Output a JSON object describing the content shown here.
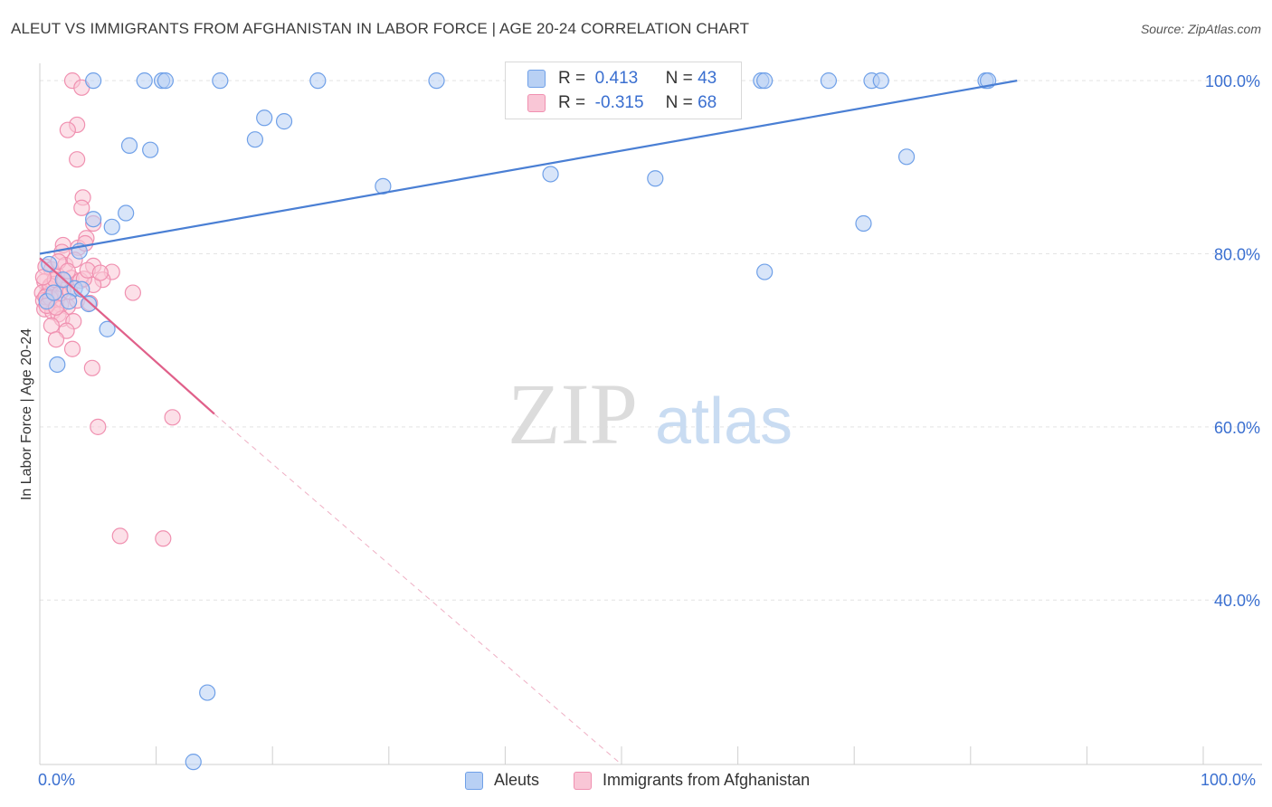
{
  "title": "ALEUT VS IMMIGRANTS FROM AFGHANISTAN IN LABOR FORCE | AGE 20-24 CORRELATION CHART",
  "source": "Source: ZipAtlas.com",
  "watermark": {
    "zip": "ZIP",
    "atlas": "atlas"
  },
  "legend": {
    "rows": [
      {
        "r_label": "R =",
        "r_value": "0.413",
        "n_label": "N =",
        "n_value": "43",
        "color": "#6fa0e8",
        "fill": "#b8d0f4"
      },
      {
        "r_label": "R =",
        "r_value": "-0.315",
        "n_label": "N =",
        "n_value": "68",
        "color": "#f090b0",
        "fill": "#f9c6d6"
      }
    ]
  },
  "bottom_legend": [
    {
      "label": "Aleuts",
      "fill": "#b8d0f4",
      "stroke": "#6fa0e8"
    },
    {
      "label": "Immigrants from Afghanistan",
      "fill": "#f9c6d6",
      "stroke": "#f090b0"
    }
  ],
  "x_axis": {
    "min_label": "0.0%",
    "max_label": "100.0%"
  },
  "chart_data": {
    "type": "scatter",
    "title": "ALEUT VS IMMIGRANTS FROM AFGHANISTAN IN LABOR FORCE | AGE 20-24 CORRELATION CHART",
    "xlabel": "",
    "ylabel": "In Labor Force | Age 20-24",
    "xlim": [
      0,
      100
    ],
    "ylim": [
      21,
      102
    ],
    "y_ticks": [
      {
        "value": 100,
        "label": "100.0%"
      },
      {
        "value": 80,
        "label": "80.0%"
      },
      {
        "value": 60,
        "label": "60.0%"
      },
      {
        "value": 40,
        "label": "40.0%"
      }
    ],
    "x_ticks": [
      0,
      10,
      20,
      30,
      40,
      50,
      60,
      70,
      80,
      90,
      100
    ],
    "series": [
      {
        "name": "Aleuts",
        "color": "#4a7fd4",
        "fill": "#b8d0f4",
        "stroke": "#6fa0e8",
        "trend": {
          "x": [
            0,
            84
          ],
          "y": [
            80.0,
            100.0
          ],
          "dashed_to": null
        },
        "points": [
          [
            4.6,
            100
          ],
          [
            9.0,
            100
          ],
          [
            10.5,
            100
          ],
          [
            10.8,
            100
          ],
          [
            15.5,
            100
          ],
          [
            23.9,
            100
          ],
          [
            34.1,
            100
          ],
          [
            47.3,
            100
          ],
          [
            54.8,
            100
          ],
          [
            62.0,
            100
          ],
          [
            62.3,
            100
          ],
          [
            67.8,
            100
          ],
          [
            71.5,
            100
          ],
          [
            72.3,
            100
          ],
          [
            81.3,
            100
          ],
          [
            81.5,
            100
          ],
          [
            19.3,
            95.7
          ],
          [
            21.0,
            95.3
          ],
          [
            18.5,
            93.2
          ],
          [
            7.7,
            92.5
          ],
          [
            9.5,
            92.0
          ],
          [
            74.5,
            91.2
          ],
          [
            43.9,
            89.2
          ],
          [
            52.9,
            88.7
          ],
          [
            29.5,
            87.8
          ],
          [
            7.4,
            84.7
          ],
          [
            6.2,
            83.1
          ],
          [
            4.6,
            84.0
          ],
          [
            70.8,
            83.5
          ],
          [
            3.4,
            80.3
          ],
          [
            0.8,
            78.8
          ],
          [
            62.3,
            77.9
          ],
          [
            3.0,
            76.0
          ],
          [
            4.2,
            74.2
          ],
          [
            2.5,
            74.5
          ],
          [
            5.8,
            71.3
          ],
          [
            1.5,
            67.2
          ],
          [
            0.6,
            74.5
          ],
          [
            14.4,
            29.3
          ],
          [
            13.2,
            21.3
          ],
          [
            2.0,
            77.0
          ],
          [
            1.2,
            75.5
          ],
          [
            3.6,
            75.9
          ]
        ]
      },
      {
        "name": "Immigrants from Afghanistan",
        "color": "#e0608a",
        "fill": "#f9c6d6",
        "stroke": "#f090b0",
        "trend": {
          "x": [
            0,
            15
          ],
          "y": [
            79.5,
            61.5
          ],
          "dashed_to": [
            50,
            21
          ]
        },
        "points": [
          [
            2.8,
            100
          ],
          [
            3.6,
            99.2
          ],
          [
            3.2,
            94.9
          ],
          [
            2.4,
            94.3
          ],
          [
            3.2,
            90.9
          ],
          [
            3.7,
            86.5
          ],
          [
            3.6,
            85.3
          ],
          [
            4.0,
            81.8
          ],
          [
            2.0,
            81.0
          ],
          [
            1.9,
            80.2
          ],
          [
            3.3,
            80.7
          ],
          [
            4.6,
            83.5
          ],
          [
            0.5,
            78.5
          ],
          [
            1.0,
            78.2
          ],
          [
            2.2,
            78.7
          ],
          [
            4.6,
            78.6
          ],
          [
            6.2,
            77.9
          ],
          [
            1.5,
            77.5
          ],
          [
            2.7,
            77.2
          ],
          [
            3.5,
            76.9
          ],
          [
            5.4,
            77.0
          ],
          [
            0.4,
            76.8
          ],
          [
            1.2,
            76.5
          ],
          [
            0.8,
            76.0
          ],
          [
            2.0,
            75.8
          ],
          [
            0.2,
            75.5
          ],
          [
            0.6,
            75.2
          ],
          [
            1.0,
            75.0
          ],
          [
            1.5,
            74.8
          ],
          [
            0.3,
            74.6
          ],
          [
            0.7,
            74.3
          ],
          [
            1.8,
            74.1
          ],
          [
            2.4,
            73.9
          ],
          [
            0.4,
            73.6
          ],
          [
            1.1,
            73.3
          ],
          [
            1.6,
            73.0
          ],
          [
            3.2,
            74.6
          ],
          [
            4.3,
            74.3
          ],
          [
            8.0,
            75.5
          ],
          [
            4.6,
            76.4
          ],
          [
            1.9,
            72.5
          ],
          [
            2.9,
            72.2
          ],
          [
            1.0,
            71.7
          ],
          [
            2.3,
            71.1
          ],
          [
            1.4,
            70.1
          ],
          [
            2.8,
            69.0
          ],
          [
            4.5,
            66.8
          ],
          [
            5.0,
            60.0
          ],
          [
            11.4,
            61.1
          ],
          [
            6.9,
            47.4
          ],
          [
            10.6,
            47.1
          ],
          [
            0.9,
            76.3
          ],
          [
            1.3,
            77.0
          ],
          [
            2.1,
            76.9
          ],
          [
            0.5,
            75.0
          ],
          [
            0.9,
            74.9
          ],
          [
            1.7,
            75.4
          ],
          [
            0.3,
            77.3
          ],
          [
            2.6,
            75.6
          ],
          [
            3.8,
            77.1
          ],
          [
            4.1,
            78.1
          ],
          [
            3.0,
            79.3
          ],
          [
            1.6,
            79.1
          ],
          [
            2.4,
            78.0
          ],
          [
            0.6,
            74.0
          ],
          [
            1.4,
            73.8
          ],
          [
            3.9,
            81.2
          ],
          [
            5.2,
            77.8
          ]
        ]
      }
    ]
  }
}
